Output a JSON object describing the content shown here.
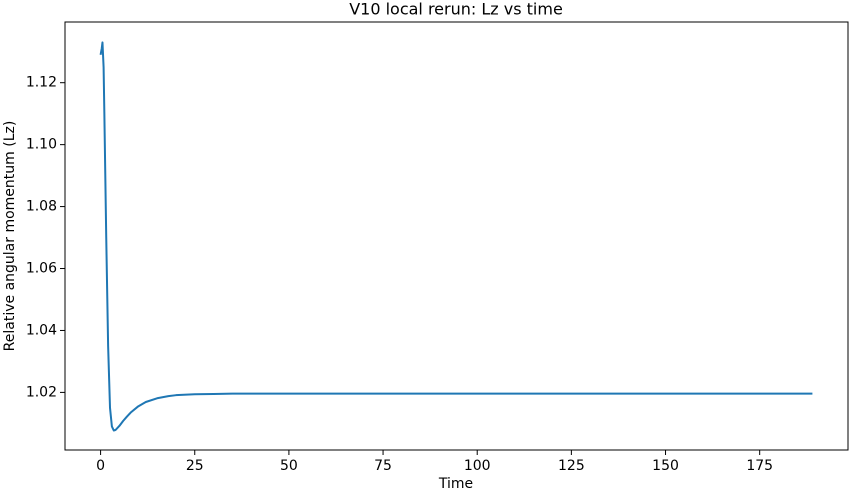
{
  "chart_data": {
    "type": "line",
    "title": "V10 local rerun: Lz vs time",
    "x_label": "Time",
    "y_label": "Relative angular momentum (Lz)",
    "series": [
      {
        "color": "#1f77b4",
        "x": [
          0,
          0.3,
          0.5,
          0.8,
          1,
          1.5,
          2,
          2.5,
          3,
          3.5,
          4,
          5,
          6,
          7,
          8,
          10,
          12,
          15,
          18,
          20,
          25,
          30,
          35,
          40,
          60,
          100,
          150,
          189
        ],
        "values": [
          1.129,
          1.131,
          1.133,
          1.125,
          1.11,
          1.07,
          1.035,
          1.015,
          1.009,
          1.0077,
          1.0079,
          1.0092,
          1.0108,
          1.0122,
          1.0135,
          1.0155,
          1.0169,
          1.0181,
          1.0188,
          1.0191,
          1.0194,
          1.0195,
          1.0196,
          1.0196,
          1.0196,
          1.0196,
          1.0196,
          1.0196
        ]
      }
    ],
    "xlim": [
      -9.45,
      198.45
    ],
    "xticks": [
      0,
      25,
      50,
      75,
      100,
      125,
      150,
      175
    ],
    "ylim": [
      1.0014,
      1.1396
    ],
    "yticks": [
      1.02,
      1.04,
      1.06,
      1.08,
      {
        "value": 1.1,
        "label": "1.10"
      },
      1.12
    ],
    "grid": false
  }
}
